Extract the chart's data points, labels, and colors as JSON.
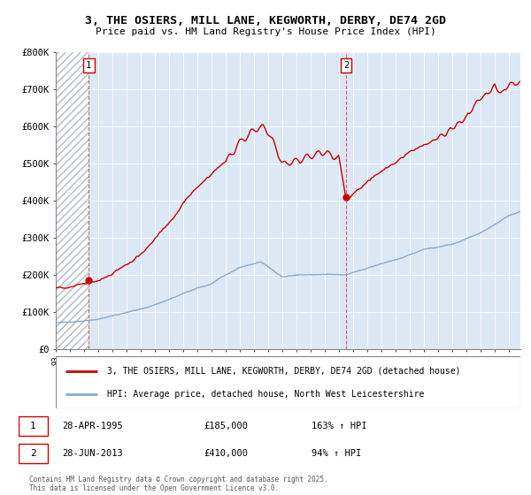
{
  "title": "3, THE OSIERS, MILL LANE, KEGWORTH, DERBY, DE74 2GD",
  "subtitle": "Price paid vs. HM Land Registry's House Price Index (HPI)",
  "ylim": [
    0,
    800000
  ],
  "yticks": [
    0,
    100000,
    200000,
    300000,
    400000,
    500000,
    600000,
    700000,
    800000
  ],
  "ytick_labels": [
    "£0",
    "£100K",
    "£200K",
    "£300K",
    "£400K",
    "£500K",
    "£600K",
    "£700K",
    "£800K"
  ],
  "line1_color": "#cc0000",
  "line2_color": "#88aacc",
  "sale1_year": 1995.33,
  "sale1_price": 185000,
  "sale2_year": 2013.5,
  "sale2_price": 410000,
  "x_min": 1993.0,
  "x_max": 2025.8,
  "annotation1_date": "28-APR-1995",
  "annotation1_price": "£185,000",
  "annotation1_hpi": "163% ↑ HPI",
  "annotation2_date": "28-JUN-2013",
  "annotation2_price": "£410,000",
  "annotation2_hpi": "94% ↑ HPI",
  "legend1": "3, THE OSIERS, MILL LANE, KEGWORTH, DERBY, DE74 2GD (detached house)",
  "legend2": "HPI: Average price, detached house, North West Leicestershire",
  "copyright": "Contains HM Land Registry data © Crown copyright and database right 2025.\nThis data is licensed under the Open Government Licence v3.0.",
  "plot_bg": "#dce8f5",
  "hatch_color": "#b0b8c8"
}
